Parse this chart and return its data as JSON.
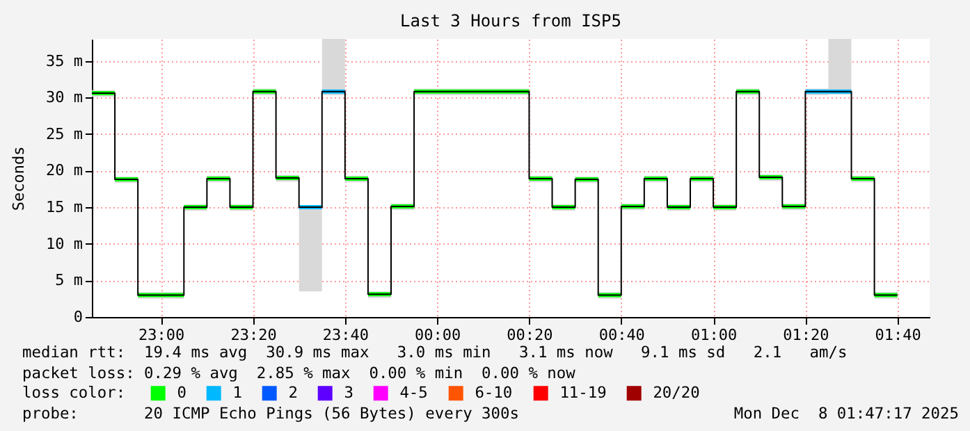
{
  "chart_data": {
    "type": "step",
    "title": "Last 3 Hours from ISP5",
    "ylabel": "Seconds",
    "x": [
      "2025-12-07T22:45",
      "2025-12-07T22:50",
      "2025-12-07T22:55",
      "2025-12-07T23:00",
      "2025-12-07T23:05",
      "2025-12-07T23:10",
      "2025-12-07T23:15",
      "2025-12-07T23:20",
      "2025-12-07T23:25",
      "2025-12-07T23:30",
      "2025-12-07T23:35",
      "2025-12-07T23:40",
      "2025-12-07T23:45",
      "2025-12-07T23:50",
      "2025-12-07T23:55",
      "2025-12-08T00:00",
      "2025-12-08T00:05",
      "2025-12-08T00:10",
      "2025-12-08T00:15",
      "2025-12-08T00:20",
      "2025-12-08T00:25",
      "2025-12-08T00:30",
      "2025-12-08T00:35",
      "2025-12-08T00:40",
      "2025-12-08T00:45",
      "2025-12-08T00:50",
      "2025-12-08T00:55",
      "2025-12-08T01:00",
      "2025-12-08T01:05",
      "2025-12-08T01:10",
      "2025-12-08T01:15",
      "2025-12-08T01:20",
      "2025-12-08T01:25",
      "2025-12-08T01:30",
      "2025-12-08T01:35",
      "2025-12-08T01:40"
    ],
    "xlim": [
      "2025-12-07T22:45",
      "2025-12-08T01:47"
    ],
    "xticks": [
      {
        "value": "2025-12-07T23:00",
        "label": "23:00"
      },
      {
        "value": "2025-12-07T23:20",
        "label": "23:20"
      },
      {
        "value": "2025-12-07T23:40",
        "label": "23:40"
      },
      {
        "value": "2025-12-08T00:00",
        "label": "00:00"
      },
      {
        "value": "2025-12-08T00:20",
        "label": "00:20"
      },
      {
        "value": "2025-12-08T00:40",
        "label": "00:40"
      },
      {
        "value": "2025-12-08T01:00",
        "label": "01:00"
      },
      {
        "value": "2025-12-08T01:20",
        "label": "01:20"
      },
      {
        "value": "2025-12-08T01:40",
        "label": "01:40"
      }
    ],
    "ylim": [
      0,
      38
    ],
    "yticks": [
      0,
      {
        "value": 5,
        "label": "5 m"
      },
      {
        "value": 10,
        "label": "10 m"
      },
      {
        "value": 15,
        "label": "15 m"
      },
      {
        "value": 20,
        "label": "20 m"
      },
      {
        "value": 25,
        "label": "25 m"
      },
      {
        "value": 30,
        "label": "30 m"
      },
      {
        "value": 35,
        "label": "35 m"
      }
    ],
    "grid": true,
    "legend": "bottom",
    "legend_title": "loss color:",
    "series": [
      {
        "color": "#000000",
        "values": [
          30.6,
          18.8,
          3.0,
          3.0,
          15.0,
          18.9,
          15.0,
          30.8,
          19.0,
          15.0,
          30.8,
          18.9,
          3.1,
          15.1,
          30.8,
          30.8,
          30.8,
          30.8,
          30.8,
          18.9,
          15.0,
          18.8,
          3.0,
          15.1,
          18.9,
          15.0,
          18.9,
          15.0,
          30.8,
          19.1,
          15.1,
          30.8,
          30.8,
          18.9,
          3.0,
          3.0
        ],
        "lower": [
          30.1,
          18.3,
          2.5,
          2.5,
          14.5,
          18.4,
          14.5,
          30.3,
          18.5,
          3.5,
          30.3,
          18.4,
          2.6,
          14.6,
          30.3,
          30.3,
          30.3,
          30.3,
          30.3,
          18.4,
          14.5,
          18.3,
          2.5,
          14.6,
          18.4,
          14.5,
          18.4,
          14.5,
          30.3,
          18.6,
          14.6,
          30.3,
          30.4,
          18.4,
          2.5,
          2.5
        ],
        "upper": [
          31.0,
          19.2,
          3.4,
          3.4,
          15.4,
          19.3,
          15.4,
          31.2,
          19.4,
          15.2,
          38,
          19.3,
          3.5,
          15.5,
          31.2,
          31.2,
          31.2,
          31.2,
          31.2,
          19.3,
          15.4,
          19.2,
          3.4,
          15.5,
          19.3,
          15.4,
          19.3,
          15.4,
          31.2,
          19.5,
          15.5,
          31.2,
          38,
          19.3,
          3.4,
          3.4
        ]
      },
      {
        "name": "0",
        "color": "#00ff00",
        "values": [
          30.6,
          18.8,
          3.0,
          3.0,
          15.0,
          18.9,
          15.0,
          30.8,
          19.0,
          null,
          null,
          18.9,
          3.1,
          15.1,
          30.8,
          30.8,
          30.8,
          30.8,
          30.8,
          18.9,
          15.0,
          18.8,
          3.0,
          15.1,
          18.9,
          15.0,
          18.9,
          15.0,
          30.8,
          19.1,
          15.1,
          null,
          null,
          18.9,
          3.0,
          3.0
        ]
      },
      {
        "name": "1",
        "color": "#00b8ff",
        "values": [
          null,
          null,
          null,
          null,
          null,
          null,
          null,
          null,
          null,
          15.0,
          30.8,
          null,
          null,
          null,
          null,
          null,
          null,
          null,
          null,
          null,
          null,
          null,
          null,
          null,
          null,
          null,
          null,
          null,
          null,
          null,
          null,
          30.8,
          30.8,
          null,
          null,
          null
        ]
      },
      {
        "name": "2",
        "color": "#0059ff",
        "values": [
          null,
          null,
          null,
          null,
          null,
          null,
          null,
          null,
          null,
          null,
          null,
          null,
          null,
          null,
          null,
          null,
          null,
          null,
          null,
          null,
          null,
          null,
          null,
          null,
          null,
          null,
          null,
          null,
          null,
          null,
          null,
          null,
          null,
          null,
          null,
          null
        ]
      },
      {
        "name": "3",
        "color": "#5e00ff",
        "values": [
          null,
          null,
          null,
          null,
          null,
          null,
          null,
          null,
          null,
          null,
          null,
          null,
          null,
          null,
          null,
          null,
          null,
          null,
          null,
          null,
          null,
          null,
          null,
          null,
          null,
          null,
          null,
          null,
          null,
          null,
          null,
          null,
          null,
          null,
          null,
          null
        ]
      },
      {
        "name": "4-5",
        "color": "#ff00ff",
        "values": [
          null,
          null,
          null,
          null,
          null,
          null,
          null,
          null,
          null,
          null,
          null,
          null,
          null,
          null,
          null,
          null,
          null,
          null,
          null,
          null,
          null,
          null,
          null,
          null,
          null,
          null,
          null,
          null,
          null,
          null,
          null,
          null,
          null,
          null,
          null,
          null
        ]
      },
      {
        "name": "6-10",
        "color": "#ff5500",
        "values": [
          null,
          null,
          null,
          null,
          null,
          null,
          null,
          null,
          null,
          null,
          null,
          null,
          null,
          null,
          null,
          null,
          null,
          null,
          null,
          null,
          null,
          null,
          null,
          null,
          null,
          null,
          null,
          null,
          null,
          null,
          null,
          null,
          null,
          null,
          null,
          null
        ]
      },
      {
        "name": "11-19",
        "color": "#ff0000",
        "values": [
          null,
          null,
          null,
          null,
          null,
          null,
          null,
          null,
          null,
          null,
          null,
          null,
          null,
          null,
          null,
          null,
          null,
          null,
          null,
          null,
          null,
          null,
          null,
          null,
          null,
          null,
          null,
          null,
          null,
          null,
          null,
          null,
          null,
          null,
          null,
          null
        ]
      },
      {
        "name": "20/20",
        "color": "#a10000",
        "values": [
          null,
          null,
          null,
          null,
          null,
          null,
          null,
          null,
          null,
          null,
          null,
          null,
          null,
          null,
          null,
          null,
          null,
          null,
          null,
          null,
          null,
          null,
          null,
          null,
          null,
          null,
          null,
          null,
          null,
          null,
          null,
          null,
          null,
          null,
          null,
          null
        ]
      }
    ],
    "annotations": [
      "median rtt:  19.4 ms avg  30.9 ms max   3.0 ms min   3.1 ms now   9.1 ms sd   2.1   am/s",
      "packet loss: 0.29 % avg  2.85 % max  0.00 % min  0.00 % now",
      "probe:       20 ICMP Echo Pings (56 Bytes) every 300s",
      "Mon Dec  8 01:47:17 2025"
    ]
  }
}
